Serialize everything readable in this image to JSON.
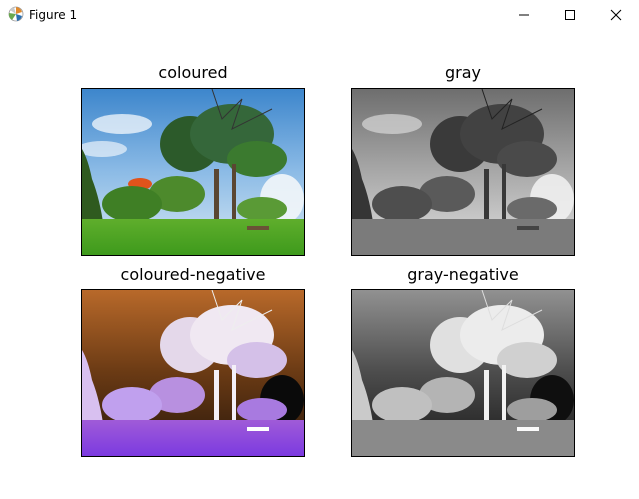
{
  "window": {
    "title": "Figure 1",
    "app_icon": "matplotlib-icon",
    "controls": [
      "minimize-icon",
      "maximize-icon",
      "close-icon"
    ]
  },
  "subplots": [
    {
      "title": "coloured",
      "image": "landscape-photo"
    },
    {
      "title": "gray",
      "image": "landscape-grayscale"
    },
    {
      "title": "coloured-negative",
      "image": "landscape-inverted"
    },
    {
      "title": "gray-negative",
      "image": "landscape-grayscale-inverted"
    }
  ]
}
